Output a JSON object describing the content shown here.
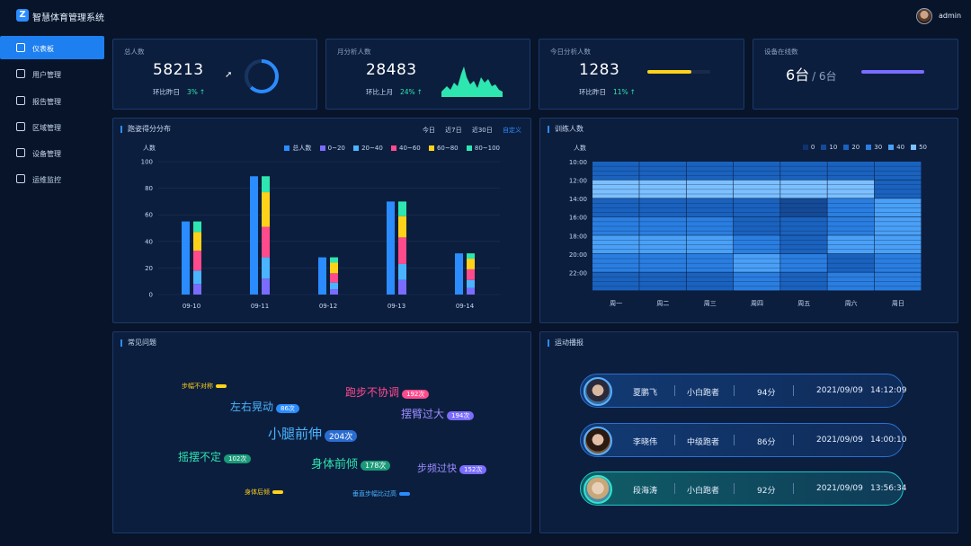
{
  "app": {
    "title": "智慧体育管理系统",
    "logo_glyph": "Z",
    "user": "admin"
  },
  "sidebar": {
    "items": [
      {
        "label": "仪表板",
        "icon": "dashboard-icon",
        "active": true
      },
      {
        "label": "用户管理",
        "icon": "users-icon",
        "active": false
      },
      {
        "label": "报告管理",
        "icon": "report-icon",
        "active": false
      },
      {
        "label": "区域管理",
        "icon": "region-icon",
        "active": false
      },
      {
        "label": "设备管理",
        "icon": "device-icon",
        "active": false
      },
      {
        "label": "运维监控",
        "icon": "monitor-icon",
        "active": false
      }
    ]
  },
  "stats": {
    "total": {
      "label": "总人数",
      "value": "58213",
      "sub": "环比昨日",
      "pct": "3%",
      "ring_progress": 0.62
    },
    "month": {
      "label": "月分析人数",
      "value": "28483",
      "sub": "环比上月",
      "pct": "24%"
    },
    "today": {
      "label": "今日分析人数",
      "value": "1283",
      "sub": "环比昨日",
      "pct": "11%",
      "bar_progress": 0.7
    },
    "device": {
      "label": "设备在线数",
      "online": "6台",
      "total": "/ 6台",
      "bar_progress": 1.0
    }
  },
  "score_panel": {
    "title": "跑姿得分分布",
    "ranges": [
      "今日",
      "近7日",
      "近30日",
      "自定义"
    ],
    "active_range": "自定义"
  },
  "training_panel": {
    "title": "训练人数"
  },
  "issues_panel": {
    "title": "常见问题"
  },
  "activity_panel": {
    "title": "运动播报"
  },
  "colors": {
    "total": "#2a8cff",
    "r0_20": "#7a6cff",
    "r20_40": "#4ab4ff",
    "r40_60": "#ff4a8c",
    "r60_80": "#ffd21a",
    "r80_100": "#2ee6b0"
  },
  "chart_data": [
    {
      "type": "bar",
      "title": "",
      "ylabel": "人数",
      "ylim": [
        0,
        100
      ],
      "yticks": [
        0,
        20,
        40,
        60,
        80,
        100
      ],
      "categories": [
        "09-10",
        "09-11",
        "09-12",
        "09-13",
        "09-14"
      ],
      "series": [
        {
          "name": "总人数",
          "values": [
            55,
            89,
            28,
            70,
            31
          ]
        },
        {
          "name": "0~20",
          "values": [
            8,
            12,
            4,
            11,
            5
          ]
        },
        {
          "name": "20~40",
          "values": [
            10,
            16,
            5,
            12,
            6
          ]
        },
        {
          "name": "40~60",
          "values": [
            15,
            23,
            7,
            20,
            8
          ]
        },
        {
          "name": "60~80",
          "values": [
            14,
            26,
            8,
            16,
            8
          ]
        },
        {
          "name": "80~100",
          "values": [
            8,
            12,
            4,
            11,
            4
          ]
        }
      ],
      "legend": "top-right"
    },
    {
      "type": "heatmap",
      "ylabel": "人数",
      "legend_values": [
        0,
        10,
        20,
        30,
        40,
        50
      ],
      "x": [
        "周一",
        "周二",
        "周三",
        "周四",
        "周五",
        "周六",
        "周日"
      ],
      "y": [
        "10:00",
        "12:00",
        "14:00",
        "16:00",
        "18:00",
        "20:00",
        "22:00"
      ],
      "values": [
        [
          20,
          20,
          20,
          20,
          20,
          20,
          20
        ],
        [
          45,
          45,
          45,
          45,
          50,
          50,
          20
        ],
        [
          20,
          20,
          20,
          20,
          10,
          30,
          40
        ],
        [
          30,
          30,
          30,
          20,
          20,
          30,
          40
        ],
        [
          40,
          40,
          40,
          30,
          20,
          40,
          40
        ],
        [
          30,
          30,
          30,
          40,
          30,
          20,
          30
        ],
        [
          20,
          20,
          20,
          30,
          20,
          30,
          30
        ]
      ]
    }
  ],
  "issues": [
    {
      "word": "步幅不对称",
      "count": "",
      "color": "#ffd21a",
      "badge": "#ffd21a",
      "size": 7
    },
    {
      "word": "跑步不协调",
      "count": "192次",
      "color": "#ff4a8c",
      "badge": "#ff4a8c",
      "size": 12
    },
    {
      "word": "左右晃动",
      "count": "86次",
      "color": "#4ab4ff",
      "badge": "#2a8cff",
      "size": 12
    },
    {
      "word": "摆臂过大",
      "count": "194次",
      "color": "#9a8cff",
      "badge": "#7a6cff",
      "size": 12
    },
    {
      "word": "小腿前伸",
      "count": "204次",
      "color": "#4ab4ff",
      "badge": "#2a6cd0",
      "size": 15
    },
    {
      "word": "摇摆不定",
      "count": "102次",
      "color": "#2ee6b0",
      "badge": "#1a9a78",
      "size": 12
    },
    {
      "word": "身体前倾",
      "count": "178次",
      "color": "#2ee6b0",
      "badge": "#1a9a78",
      "size": 13
    },
    {
      "word": "步频过快",
      "count": "152次",
      "color": "#9a8cff",
      "badge": "#7a6cff",
      "size": 11
    },
    {
      "word": "身体后倾",
      "count": "",
      "color": "#ffd21a",
      "badge": "#ffd21a",
      "size": 7
    },
    {
      "word": "垂直步幅比过高",
      "count": "",
      "color": "#4ab4ff",
      "badge": "#2a8cff",
      "size": 7
    }
  ],
  "activity": [
    {
      "name": "夏鹏飞",
      "level": "小白跑者",
      "score": "94分",
      "date": "2021/09/09",
      "time": "14:12:09"
    },
    {
      "name": "李晓伟",
      "level": "中级跑者",
      "score": "86分",
      "date": "2021/09/09",
      "time": "14:00:10"
    },
    {
      "name": "段海涛",
      "level": "小白跑者",
      "score": "92分",
      "date": "2021/09/09",
      "time": "13:56:34"
    }
  ]
}
